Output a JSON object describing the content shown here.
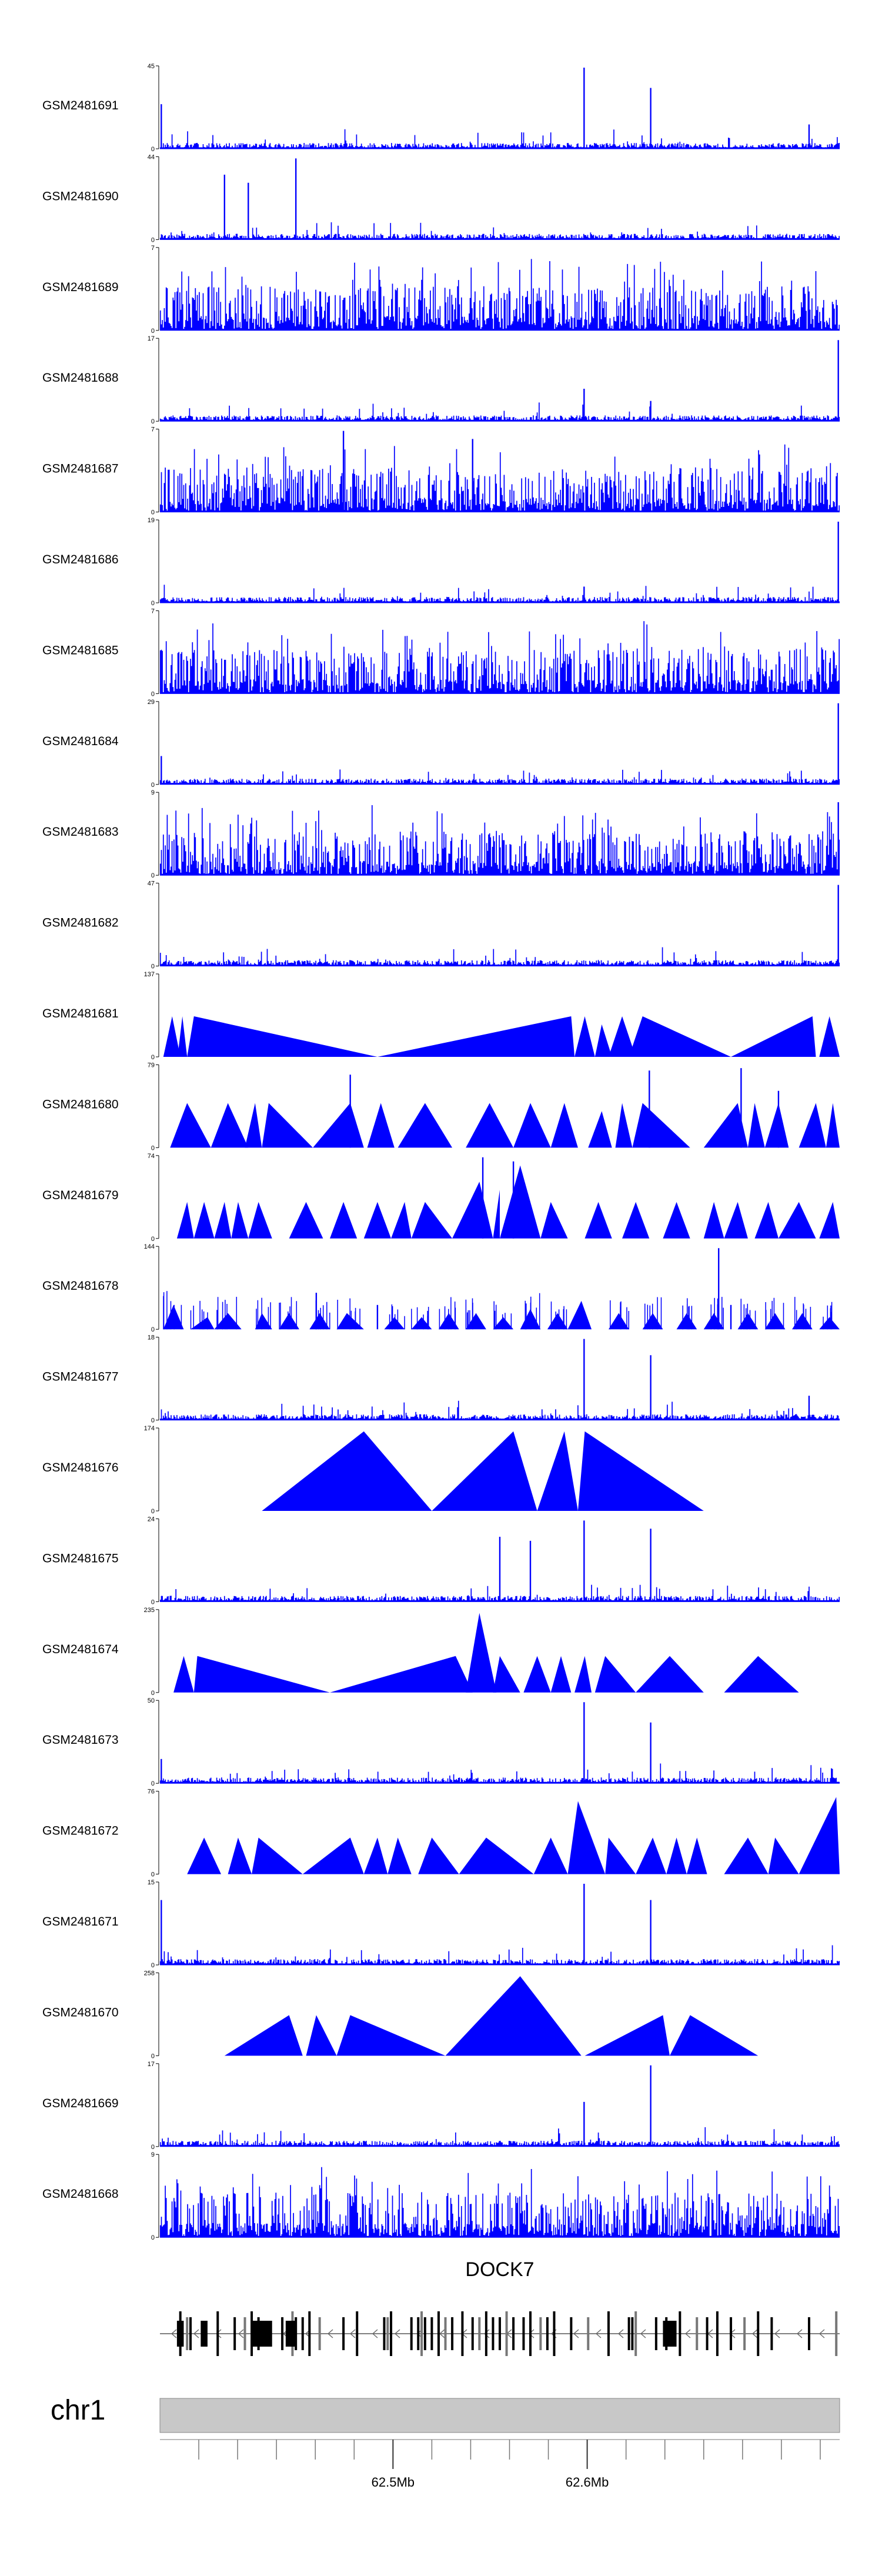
{
  "chart_data": {
    "type": "area",
    "title": "",
    "xlabel": "",
    "ylabel": "",
    "color": "#0000ff",
    "x_range_mb": [
      62.38,
      62.73
    ],
    "tracks": [
      {
        "name": "GSM2481691",
        "ymax": "45",
        "ymin": "0",
        "style": "dense",
        "peaks": [
          [
            0.624,
            1.0
          ],
          [
            0.722,
            0.75
          ],
          [
            0.955,
            0.3
          ],
          [
            0.002,
            0.55
          ]
        ]
      },
      {
        "name": "GSM2481690",
        "ymax": "44",
        "ymin": "0",
        "style": "dense",
        "peaks": [
          [
            0.2,
            1.0
          ],
          [
            0.095,
            0.8
          ],
          [
            0.13,
            0.7
          ]
        ]
      },
      {
        "name": "GSM2481689",
        "ymax": "7",
        "ymin": "0",
        "style": "dense",
        "peaks": []
      },
      {
        "name": "GSM2481688",
        "ymax": "17",
        "ymin": "0",
        "style": "dense",
        "peaks": [
          [
            0.998,
            1.0
          ],
          [
            0.624,
            0.4
          ],
          [
            0.722,
            0.25
          ]
        ]
      },
      {
        "name": "GSM2481687",
        "ymax": "7",
        "ymin": "0",
        "style": "dense",
        "peaks": [
          [
            0.27,
            1.0
          ],
          [
            0.46,
            0.9
          ]
        ]
      },
      {
        "name": "GSM2481686",
        "ymax": "19",
        "ymin": "0",
        "style": "dense",
        "peaks": [
          [
            0.998,
            1.0
          ],
          [
            0.624,
            0.2
          ]
        ]
      },
      {
        "name": "GSM2481685",
        "ymax": "7",
        "ymin": "0",
        "style": "dense",
        "peaks": []
      },
      {
        "name": "GSM2481684",
        "ymax": "29",
        "ymin": "0",
        "style": "dense",
        "peaks": [
          [
            0.998,
            1.0
          ],
          [
            0.002,
            0.35
          ]
        ]
      },
      {
        "name": "GSM2481683",
        "ymax": "9",
        "ymin": "0",
        "style": "dense",
        "peaks": [
          [
            0.998,
            0.9
          ]
        ]
      },
      {
        "name": "GSM2481682",
        "ymax": "47",
        "ymin": "0",
        "style": "dense",
        "peaks": [
          [
            0.998,
            1.0
          ]
        ]
      },
      {
        "name": "GSM2481681",
        "ymax": "137",
        "ymin": "0",
        "style": "tri",
        "tris": [
          [
            0.005,
            0.018,
            0.03,
            0.5
          ],
          [
            0.026,
            0.033,
            0.04,
            0.5
          ],
          [
            0.04,
            0.05,
            0.32,
            0.5
          ],
          [
            0.32,
            0.605,
            0.61,
            0.5
          ],
          [
            0.61,
            0.625,
            0.64,
            0.5
          ],
          [
            0.64,
            0.65,
            0.665,
            0.4
          ],
          [
            0.66,
            0.68,
            0.7,
            0.5
          ],
          [
            0.69,
            0.71,
            0.84,
            0.5
          ],
          [
            0.84,
            0.96,
            0.965,
            0.5
          ],
          [
            0.97,
            0.985,
            1.0,
            0.5
          ]
        ]
      },
      {
        "name": "GSM2481680",
        "ymax": "79",
        "ymin": "0",
        "style": "tri",
        "tris": [
          [
            0.015,
            0.04,
            0.075,
            0.55
          ],
          [
            0.075,
            0.1,
            0.13,
            0.55
          ],
          [
            0.125,
            0.14,
            0.15,
            0.55
          ],
          [
            0.15,
            0.16,
            0.225,
            0.55
          ],
          [
            0.225,
            0.28,
            0.3,
            0.55
          ],
          [
            0.305,
            0.325,
            0.345,
            0.55
          ],
          [
            0.35,
            0.39,
            0.43,
            0.55
          ],
          [
            0.45,
            0.485,
            0.52,
            0.55
          ],
          [
            0.52,
            0.545,
            0.575,
            0.55
          ],
          [
            0.575,
            0.595,
            0.615,
            0.55
          ],
          [
            0.63,
            0.65,
            0.665,
            0.45
          ],
          [
            0.67,
            0.68,
            0.695,
            0.55
          ],
          [
            0.695,
            0.71,
            0.78,
            0.55
          ],
          [
            0.8,
            0.85,
            0.865,
            0.55
          ],
          [
            0.865,
            0.875,
            0.89,
            0.55
          ],
          [
            0.89,
            0.91,
            0.925,
            0.55
          ],
          [
            0.94,
            0.965,
            0.98,
            0.55
          ],
          [
            0.98,
            0.99,
            1.0,
            0.55
          ]
        ],
        "peaks": [
          [
            0.28,
            0.9
          ],
          [
            0.72,
            0.95
          ],
          [
            0.855,
            0.98
          ],
          [
            0.91,
            0.7
          ]
        ]
      },
      {
        "name": "GSM2481679",
        "ymax": "74",
        "ymin": "0",
        "style": "tri",
        "tris": [
          [
            0.025,
            0.04,
            0.05,
            0.45
          ],
          [
            0.05,
            0.065,
            0.08,
            0.45
          ],
          [
            0.08,
            0.095,
            0.105,
            0.45
          ],
          [
            0.105,
            0.115,
            0.13,
            0.45
          ],
          [
            0.13,
            0.145,
            0.165,
            0.45
          ],
          [
            0.19,
            0.215,
            0.24,
            0.45
          ],
          [
            0.25,
            0.27,
            0.29,
            0.45
          ],
          [
            0.3,
            0.32,
            0.34,
            0.45
          ],
          [
            0.34,
            0.36,
            0.37,
            0.45
          ],
          [
            0.37,
            0.39,
            0.43,
            0.45
          ],
          [
            0.43,
            0.47,
            0.49,
            0.7
          ],
          [
            0.49,
            0.5,
            0.5,
            0.6
          ],
          [
            0.5,
            0.53,
            0.56,
            0.9
          ],
          [
            0.56,
            0.575,
            0.6,
            0.45
          ],
          [
            0.625,
            0.645,
            0.665,
            0.45
          ],
          [
            0.68,
            0.7,
            0.72,
            0.45
          ],
          [
            0.74,
            0.76,
            0.78,
            0.45
          ],
          [
            0.8,
            0.815,
            0.83,
            0.45
          ],
          [
            0.83,
            0.85,
            0.865,
            0.45
          ],
          [
            0.875,
            0.895,
            0.91,
            0.45
          ],
          [
            0.91,
            0.94,
            0.965,
            0.45
          ],
          [
            0.97,
            0.99,
            1.0,
            0.45
          ]
        ],
        "peaks": [
          [
            0.475,
            1.0
          ],
          [
            0.52,
            0.95
          ]
        ]
      },
      {
        "name": "GSM2481678",
        "ymax": "144",
        "ymin": "0",
        "style": "tri",
        "tris": [
          [
            0.005,
            0.02,
            0.035,
            0.3
          ],
          [
            0.045,
            0.07,
            0.08,
            0.15
          ],
          [
            0.08,
            0.1,
            0.12,
            0.2
          ],
          [
            0.14,
            0.15,
            0.165,
            0.2
          ],
          [
            0.175,
            0.19,
            0.205,
            0.2
          ],
          [
            0.22,
            0.235,
            0.25,
            0.2
          ],
          [
            0.26,
            0.275,
            0.3,
            0.2
          ],
          [
            0.33,
            0.345,
            0.36,
            0.15
          ],
          [
            0.37,
            0.385,
            0.4,
            0.15
          ],
          [
            0.41,
            0.425,
            0.44,
            0.2
          ],
          [
            0.45,
            0.465,
            0.48,
            0.2
          ],
          [
            0.49,
            0.505,
            0.52,
            0.15
          ],
          [
            0.53,
            0.545,
            0.56,
            0.25
          ],
          [
            0.57,
            0.585,
            0.6,
            0.2
          ],
          [
            0.6,
            0.62,
            0.635,
            0.35
          ],
          [
            0.66,
            0.675,
            0.69,
            0.2
          ],
          [
            0.71,
            0.725,
            0.74,
            0.2
          ],
          [
            0.76,
            0.775,
            0.79,
            0.2
          ],
          [
            0.8,
            0.815,
            0.83,
            0.2
          ],
          [
            0.85,
            0.865,
            0.88,
            0.2
          ],
          [
            0.89,
            0.905,
            0.92,
            0.2
          ],
          [
            0.93,
            0.945,
            0.96,
            0.2
          ],
          [
            0.97,
            0.985,
            1.0,
            0.15
          ]
        ],
        "peaks": [
          [
            0.822,
            1.0
          ],
          [
            0.84,
            0.3
          ],
          [
            0.23,
            0.45
          ],
          [
            0.32,
            0.3
          ]
        ]
      },
      {
        "name": "GSM2481677",
        "ymax": "18",
        "ymin": "0",
        "style": "dense",
        "peaks": [
          [
            0.624,
            1.0
          ],
          [
            0.722,
            0.8
          ],
          [
            0.955,
            0.3
          ]
        ]
      },
      {
        "name": "GSM2481676",
        "ymax": "174",
        "ymin": "0",
        "style": "tri",
        "tris": [
          [
            0.15,
            0.3,
            0.4,
            0.98
          ],
          [
            0.4,
            0.52,
            0.555,
            0.98
          ],
          [
            0.555,
            0.595,
            0.615,
            0.98
          ],
          [
            0.615,
            0.625,
            0.8,
            0.98
          ]
        ]
      },
      {
        "name": "GSM2481675",
        "ymax": "24",
        "ymin": "0",
        "style": "dense",
        "peaks": [
          [
            0.624,
            1.0
          ],
          [
            0.722,
            0.9
          ],
          [
            0.5,
            0.8
          ],
          [
            0.545,
            0.75
          ]
        ]
      },
      {
        "name": "GSM2481674",
        "ymax": "235",
        "ymin": "0",
        "style": "tri",
        "tris": [
          [
            0.02,
            0.035,
            0.05,
            0.45
          ],
          [
            0.05,
            0.055,
            0.25,
            0.45
          ],
          [
            0.25,
            0.435,
            0.46,
            0.45
          ],
          [
            0.45,
            0.47,
            0.495,
            0.98
          ],
          [
            0.49,
            0.5,
            0.53,
            0.45
          ],
          [
            0.535,
            0.555,
            0.575,
            0.45
          ],
          [
            0.575,
            0.59,
            0.605,
            0.45
          ],
          [
            0.61,
            0.625,
            0.635,
            0.45
          ],
          [
            0.64,
            0.655,
            0.7,
            0.45
          ],
          [
            0.7,
            0.75,
            0.8,
            0.45
          ],
          [
            0.83,
            0.88,
            0.94,
            0.45
          ]
        ]
      },
      {
        "name": "GSM2481673",
        "ymax": "50",
        "ymin": "0",
        "style": "dense",
        "peaks": [
          [
            0.624,
            1.0
          ],
          [
            0.722,
            0.75
          ],
          [
            0.002,
            0.3
          ]
        ]
      },
      {
        "name": "GSM2481672",
        "ymax": "76",
        "ymin": "0",
        "style": "tri",
        "tris": [
          [
            0.04,
            0.065,
            0.09,
            0.45
          ],
          [
            0.1,
            0.115,
            0.135,
            0.45
          ],
          [
            0.135,
            0.145,
            0.21,
            0.45
          ],
          [
            0.21,
            0.28,
            0.3,
            0.45
          ],
          [
            0.3,
            0.32,
            0.335,
            0.45
          ],
          [
            0.335,
            0.35,
            0.37,
            0.45
          ],
          [
            0.38,
            0.4,
            0.44,
            0.45
          ],
          [
            0.44,
            0.48,
            0.55,
            0.45
          ],
          [
            0.55,
            0.575,
            0.6,
            0.45
          ],
          [
            0.6,
            0.615,
            0.655,
            0.9
          ],
          [
            0.655,
            0.66,
            0.7,
            0.45
          ],
          [
            0.7,
            0.725,
            0.745,
            0.45
          ],
          [
            0.745,
            0.76,
            0.775,
            0.45
          ],
          [
            0.775,
            0.79,
            0.805,
            0.45
          ],
          [
            0.83,
            0.865,
            0.895,
            0.45
          ],
          [
            0.895,
            0.905,
            0.94,
            0.45
          ],
          [
            0.94,
            0.995,
            1.0,
            0.95
          ]
        ]
      },
      {
        "name": "GSM2481671",
        "ymax": "15",
        "ymin": "0",
        "style": "dense",
        "peaks": [
          [
            0.624,
            1.0
          ],
          [
            0.722,
            0.8
          ],
          [
            0.002,
            0.8
          ]
        ]
      },
      {
        "name": "GSM2481670",
        "ymax": "258",
        "ymin": "0",
        "style": "tri",
        "tris": [
          [
            0.095,
            0.19,
            0.21,
            0.5
          ],
          [
            0.215,
            0.23,
            0.26,
            0.5
          ],
          [
            0.26,
            0.28,
            0.42,
            0.5
          ],
          [
            0.42,
            0.53,
            0.62,
            0.98
          ],
          [
            0.625,
            0.74,
            0.75,
            0.5
          ],
          [
            0.75,
            0.78,
            0.88,
            0.5
          ]
        ]
      },
      {
        "name": "GSM2481669",
        "ymax": "17",
        "ymin": "0",
        "style": "dense",
        "peaks": [
          [
            0.722,
            1.0
          ],
          [
            0.624,
            0.55
          ]
        ]
      },
      {
        "name": "GSM2481668",
        "ymax": "9",
        "ymin": "0",
        "style": "dense",
        "peaks": []
      }
    ],
    "gene": {
      "name": "DOCK7",
      "exons": [
        0.03,
        0.04,
        0.045,
        0.085,
        0.11,
        0.125,
        0.135,
        0.145,
        0.18,
        0.195,
        0.2,
        0.21,
        0.22,
        0.235,
        0.27,
        0.29,
        0.33,
        0.335,
        0.34,
        0.37,
        0.38,
        0.385,
        0.39,
        0.4,
        0.41,
        0.42,
        0.43,
        0.445,
        0.46,
        0.47,
        0.48,
        0.49,
        0.5,
        0.51,
        0.52,
        0.535,
        0.545,
        0.56,
        0.57,
        0.58,
        0.605,
        0.63,
        0.66,
        0.69,
        0.695,
        0.7,
        0.73,
        0.745,
        0.765,
        0.79,
        0.805,
        0.82,
        0.84,
        0.86,
        0.88,
        0.9,
        0.955,
        0.995
      ],
      "blocks": [
        [
          0.025,
          0.035
        ],
        [
          0.06,
          0.07
        ],
        [
          0.135,
          0.165
        ],
        [
          0.185,
          0.2
        ],
        [
          0.74,
          0.76
        ]
      ]
    },
    "chromosome": {
      "name": "chr1",
      "tick_labels": [
        "62.5Mb",
        "62.6Mb"
      ],
      "tick_positions_mb": [
        62.5,
        62.6
      ],
      "minor_ticks_mb": [
        62.4,
        62.42,
        62.44,
        62.46,
        62.48,
        62.5,
        62.52,
        62.54,
        62.56,
        62.58,
        62.6,
        62.62,
        62.64,
        62.66,
        62.68,
        62.7,
        62.72
      ]
    }
  }
}
